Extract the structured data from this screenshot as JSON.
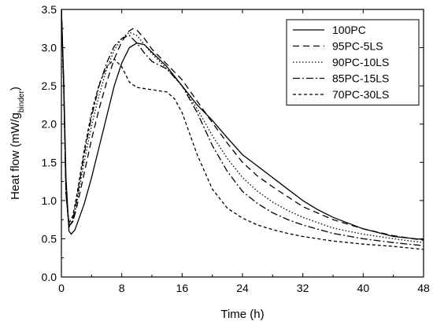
{
  "chart_data": {
    "type": "line",
    "title": "",
    "xlabel": "Time (h)",
    "ylabel": {
      "main": "Heat flow (mW/g",
      "sub": "binder",
      "tail": ")"
    },
    "xlim": [
      0,
      48
    ],
    "ylim": [
      0.0,
      3.5
    ],
    "xticks": [
      "0",
      "8",
      "16",
      "24",
      "32",
      "40",
      "48"
    ],
    "yticks": [
      "0.0",
      "0.5",
      "1.0",
      "1.5",
      "2.0",
      "2.5",
      "3.0",
      "3.5"
    ],
    "grid": false,
    "legend_position": "top-right",
    "series": [
      {
        "name": "100PC",
        "dash": "solid",
        "points": [
          [
            0,
            3.5
          ],
          [
            0.3,
            2.6
          ],
          [
            0.6,
            1.3
          ],
          [
            1.0,
            0.6
          ],
          [
            1.3,
            0.56
          ],
          [
            1.8,
            0.62
          ],
          [
            3,
            0.95
          ],
          [
            4,
            1.3
          ],
          [
            5,
            1.7
          ],
          [
            6,
            2.1
          ],
          [
            7,
            2.5
          ],
          [
            8,
            2.8
          ],
          [
            9,
            3.0
          ],
          [
            10,
            3.06
          ],
          [
            11,
            3.04
          ],
          [
            12,
            2.94
          ],
          [
            14,
            2.75
          ],
          [
            16,
            2.5
          ],
          [
            18,
            2.25
          ],
          [
            20,
            2.05
          ],
          [
            22,
            1.82
          ],
          [
            24,
            1.6
          ],
          [
            26,
            1.45
          ],
          [
            28,
            1.3
          ],
          [
            30,
            1.15
          ],
          [
            32,
            1.0
          ],
          [
            34,
            0.88
          ],
          [
            36,
            0.78
          ],
          [
            40,
            0.63
          ],
          [
            44,
            0.53
          ],
          [
            48,
            0.49
          ]
        ]
      },
      {
        "name": "95PC-5LS",
        "dash": "long",
        "points": [
          [
            0,
            3.5
          ],
          [
            0.3,
            2.5
          ],
          [
            0.6,
            1.1
          ],
          [
            1.0,
            0.68
          ],
          [
            1.5,
            0.72
          ],
          [
            2,
            0.9
          ],
          [
            3,
            1.35
          ],
          [
            4,
            1.8
          ],
          [
            5,
            2.2
          ],
          [
            6,
            2.55
          ],
          [
            7,
            2.85
          ],
          [
            8,
            3.08
          ],
          [
            9,
            3.22
          ],
          [
            9.5,
            3.25
          ],
          [
            10,
            3.23
          ],
          [
            11,
            3.12
          ],
          [
            12,
            2.98
          ],
          [
            14,
            2.78
          ],
          [
            16,
            2.58
          ],
          [
            18,
            2.3
          ],
          [
            20,
            2.02
          ],
          [
            22,
            1.75
          ],
          [
            24,
            1.5
          ],
          [
            26,
            1.32
          ],
          [
            28,
            1.18
          ],
          [
            30,
            1.05
          ],
          [
            32,
            0.92
          ],
          [
            36,
            0.75
          ],
          [
            40,
            0.63
          ],
          [
            44,
            0.54
          ],
          [
            48,
            0.48
          ]
        ]
      },
      {
        "name": "90PC-10LS",
        "dash": "dot",
        "points": [
          [
            0,
            3.5
          ],
          [
            0.3,
            2.5
          ],
          [
            0.6,
            1.1
          ],
          [
            1.0,
            0.66
          ],
          [
            1.5,
            0.72
          ],
          [
            2,
            0.95
          ],
          [
            3,
            1.5
          ],
          [
            4,
            1.98
          ],
          [
            5,
            2.38
          ],
          [
            6,
            2.72
          ],
          [
            7,
            2.97
          ],
          [
            8,
            3.12
          ],
          [
            9,
            3.2
          ],
          [
            10,
            3.16
          ],
          [
            11,
            3.04
          ],
          [
            12,
            2.92
          ],
          [
            14,
            2.72
          ],
          [
            16,
            2.5
          ],
          [
            18,
            2.2
          ],
          [
            20,
            1.85
          ],
          [
            22,
            1.55
          ],
          [
            24,
            1.3
          ],
          [
            26,
            1.12
          ],
          [
            28,
            0.98
          ],
          [
            30,
            0.87
          ],
          [
            32,
            0.78
          ],
          [
            36,
            0.64
          ],
          [
            40,
            0.56
          ],
          [
            44,
            0.5
          ],
          [
            48,
            0.45
          ]
        ]
      },
      {
        "name": "85PC-15LS",
        "dash": "dashdot",
        "points": [
          [
            0,
            3.5
          ],
          [
            0.3,
            2.5
          ],
          [
            0.6,
            1.1
          ],
          [
            1.0,
            0.65
          ],
          [
            1.5,
            0.75
          ],
          [
            2,
            1.0
          ],
          [
            3,
            1.6
          ],
          [
            4,
            2.1
          ],
          [
            5,
            2.5
          ],
          [
            6,
            2.8
          ],
          [
            7,
            3.02
          ],
          [
            8,
            3.12
          ],
          [
            9,
            3.16
          ],
          [
            10,
            3.06
          ],
          [
            11,
            2.93
          ],
          [
            12,
            2.82
          ],
          [
            14,
            2.72
          ],
          [
            16,
            2.5
          ],
          [
            18,
            2.15
          ],
          [
            20,
            1.72
          ],
          [
            22,
            1.38
          ],
          [
            24,
            1.12
          ],
          [
            26,
            0.96
          ],
          [
            28,
            0.84
          ],
          [
            30,
            0.75
          ],
          [
            32,
            0.68
          ],
          [
            36,
            0.57
          ],
          [
            40,
            0.5
          ],
          [
            44,
            0.45
          ],
          [
            48,
            0.41
          ]
        ]
      },
      {
        "name": "70PC-30LS",
        "dash": "short",
        "points": [
          [
            0,
            3.5
          ],
          [
            0.3,
            2.5
          ],
          [
            0.6,
            1.1
          ],
          [
            1.0,
            0.7
          ],
          [
            1.5,
            0.8
          ],
          [
            2,
            1.05
          ],
          [
            3,
            1.65
          ],
          [
            4,
            2.15
          ],
          [
            5,
            2.52
          ],
          [
            6,
            2.75
          ],
          [
            7,
            2.85
          ],
          [
            8,
            2.75
          ],
          [
            9,
            2.55
          ],
          [
            10,
            2.48
          ],
          [
            12,
            2.45
          ],
          [
            14,
            2.42
          ],
          [
            15,
            2.33
          ],
          [
            16,
            2.15
          ],
          [
            18,
            1.6
          ],
          [
            20,
            1.15
          ],
          [
            22,
            0.9
          ],
          [
            24,
            0.77
          ],
          [
            26,
            0.68
          ],
          [
            28,
            0.62
          ],
          [
            30,
            0.57
          ],
          [
            32,
            0.53
          ],
          [
            36,
            0.47
          ],
          [
            40,
            0.43
          ],
          [
            44,
            0.4
          ],
          [
            48,
            0.36
          ]
        ]
      }
    ]
  }
}
